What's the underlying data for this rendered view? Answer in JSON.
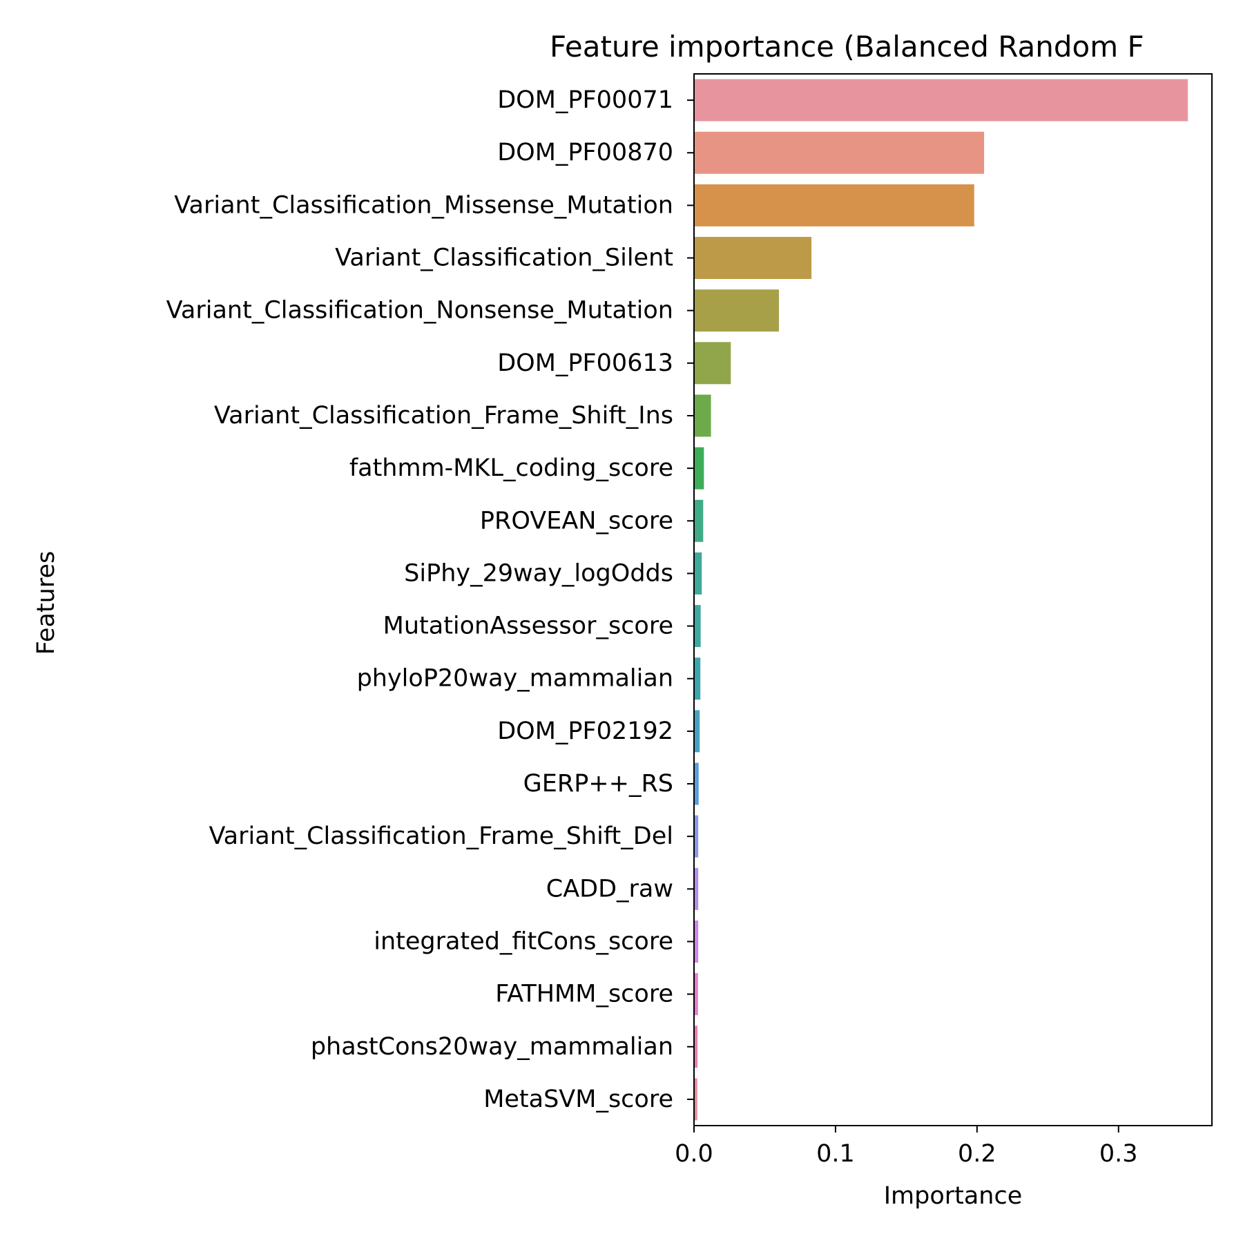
{
  "chart_data": {
    "type": "bar",
    "orientation": "horizontal",
    "title": "Feature importance (Balanced Random F",
    "xlabel": "Importance",
    "ylabel": "Features",
    "xlim": [
      0,
      0.366
    ],
    "xticks": [
      "0.0",
      "0.1",
      "0.2",
      "0.3"
    ],
    "xtick_values": [
      0,
      0.1,
      0.2,
      0.3
    ],
    "grid": false,
    "legend": "none",
    "categories": [
      "DOM_PF00071",
      "DOM_PF00870",
      "Variant_Classification_Missense_Mutation",
      "Variant_Classification_Silent",
      "Variant_Classification_Nonsense_Mutation",
      "DOM_PF00613",
      "Variant_Classification_Frame_Shift_Ins",
      "fathmm-MKL_coding_score",
      "PROVEAN_score",
      "SiPhy_29way_logOdds",
      "MutationAssessor_score",
      "phyloP20way_mammalian",
      "DOM_PF02192",
      "GERP++_RS",
      "Variant_Classification_Frame_Shift_Del",
      "CADD_raw",
      "integrated_fitCons_score",
      "FATHMM_score",
      "phastCons20way_mammalian",
      "MetaSVM_score"
    ],
    "values": [
      0.349,
      0.205,
      0.198,
      0.083,
      0.06,
      0.026,
      0.012,
      0.007,
      0.0065,
      0.0055,
      0.0047,
      0.0045,
      0.004,
      0.0033,
      0.003,
      0.003,
      0.003,
      0.0028,
      0.0025,
      0.0023
    ],
    "colors": [
      "#e8949f",
      "#e79484",
      "#d6924a",
      "#bd9a48",
      "#a8a048",
      "#91a54a",
      "#6daa4a",
      "#3ead59",
      "#40ab86",
      "#41a998",
      "#3fa8a2",
      "#3da6ad",
      "#46a3c0",
      "#5a9fd9",
      "#8c98e9",
      "#b38eea",
      "#cf85ea",
      "#e57cd0",
      "#e780b3",
      "#e78aa2"
    ]
  }
}
